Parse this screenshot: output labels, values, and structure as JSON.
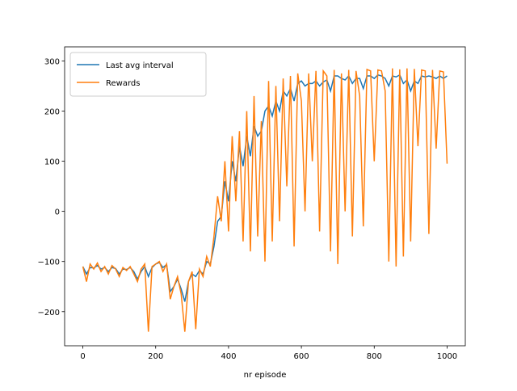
{
  "chart_data": {
    "type": "line",
    "xlabel": "nr episode",
    "x": [
      0,
      10,
      20,
      30,
      40,
      50,
      60,
      70,
      80,
      90,
      100,
      110,
      120,
      130,
      140,
      150,
      160,
      170,
      180,
      190,
      200,
      210,
      220,
      230,
      240,
      250,
      260,
      270,
      280,
      290,
      300,
      310,
      320,
      330,
      340,
      350,
      360,
      370,
      380,
      390,
      400,
      410,
      420,
      430,
      440,
      450,
      460,
      470,
      480,
      490,
      500,
      510,
      520,
      530,
      540,
      550,
      560,
      570,
      580,
      590,
      600,
      610,
      620,
      630,
      640,
      650,
      660,
      670,
      680,
      690,
      700,
      710,
      720,
      730,
      740,
      750,
      760,
      770,
      780,
      790,
      800,
      810,
      820,
      830,
      840,
      850,
      860,
      870,
      880,
      890,
      900,
      910,
      920,
      930,
      940,
      950,
      960,
      970,
      980,
      990,
      1000
    ],
    "series": [
      {
        "name": "Last avg interval",
        "color": "#1f77b4",
        "values": [
          -110,
          -125,
          -112,
          -113,
          -108,
          -115,
          -112,
          -120,
          -112,
          -114,
          -125,
          -115,
          -116,
          -112,
          -120,
          -135,
          -120,
          -110,
          -130,
          -112,
          -105,
          -102,
          -112,
          -106,
          -160,
          -150,
          -135,
          -155,
          -180,
          -140,
          -125,
          -130,
          -118,
          -125,
          -100,
          -105,
          -70,
          -20,
          -10,
          60,
          20,
          100,
          60,
          130,
          90,
          150,
          110,
          170,
          150,
          160,
          200,
          210,
          190,
          220,
          200,
          240,
          230,
          245,
          220,
          255,
          260,
          250,
          255,
          255,
          260,
          250,
          258,
          262,
          240,
          270,
          270,
          265,
          262,
          270,
          255,
          265,
          265,
          245,
          270,
          270,
          265,
          272,
          270,
          265,
          250,
          270,
          268,
          272,
          255,
          262,
          240,
          260,
          255,
          270,
          268,
          270,
          268,
          265,
          270,
          265,
          270
        ]
      },
      {
        "name": "Rewards",
        "color": "#ff7f0e",
        "values": [
          -110,
          -140,
          -105,
          -115,
          -103,
          -120,
          -110,
          -125,
          -108,
          -115,
          -130,
          -112,
          -118,
          -110,
          -125,
          -140,
          -115,
          -105,
          -240,
          -110,
          -105,
          -100,
          -120,
          -105,
          -175,
          -150,
          -130,
          -165,
          -240,
          -140,
          -120,
          -235,
          -115,
          -130,
          -90,
          -110,
          -50,
          30,
          -20,
          100,
          -40,
          150,
          20,
          160,
          -60,
          200,
          -80,
          230,
          -50,
          180,
          -100,
          260,
          -60,
          250,
          -20,
          265,
          50,
          270,
          -70,
          275,
          220,
          0,
          275,
          100,
          280,
          -40,
          280,
          270,
          -80,
          282,
          -105,
          275,
          0,
          282,
          -50,
          280,
          230,
          -30,
          283,
          280,
          100,
          282,
          280,
          240,
          -100,
          285,
          -110,
          283,
          -90,
          285,
          -60,
          284,
          130,
          282,
          280,
          -45,
          282,
          125,
          280,
          278,
          95
        ]
      }
    ],
    "xlim": [
      -50,
      1050
    ],
    "ylim": [
      -268,
      328
    ],
    "xticks": [
      0,
      200,
      400,
      600,
      800,
      1000
    ],
    "yticks": [
      {
        "value": -200,
        "label": "−200"
      },
      {
        "value": -100,
        "label": "−100"
      },
      0,
      100,
      200,
      300
    ],
    "legend": "upper left"
  }
}
